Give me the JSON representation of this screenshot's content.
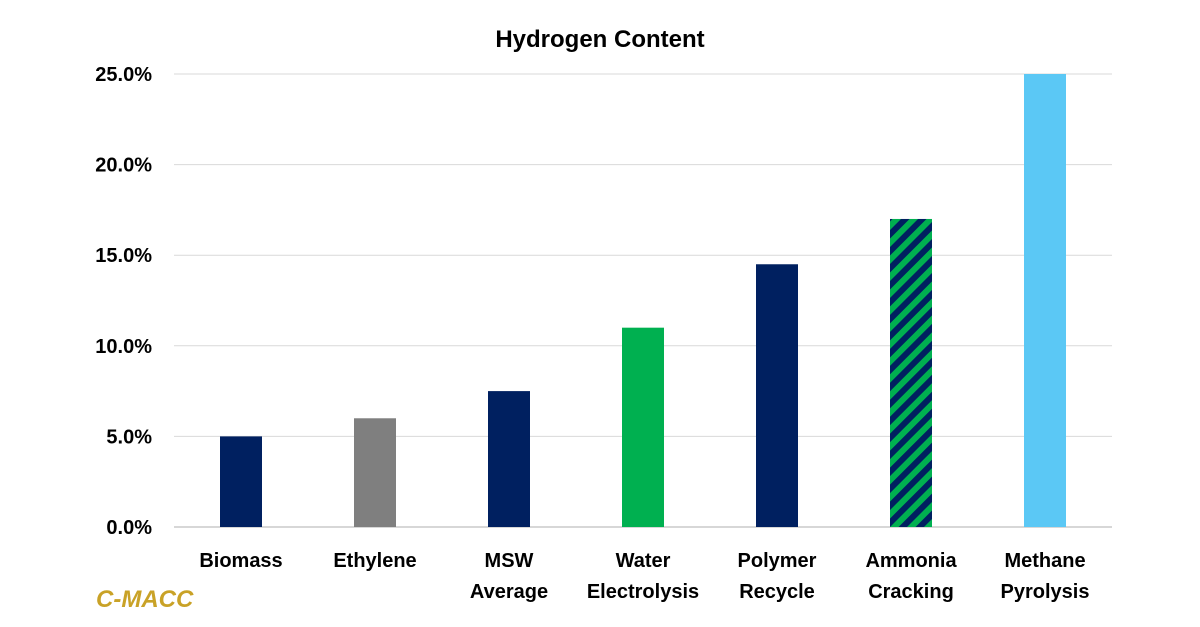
{
  "chart_data": {
    "type": "bar",
    "title": "Hydrogen Content",
    "xlabel": "",
    "ylabel": "",
    "ylim": [
      0,
      25
    ],
    "yticks": [
      "0.0%",
      "5.0%",
      "10.0%",
      "15.0%",
      "20.0%",
      "25.0%"
    ],
    "grid": true,
    "legend": "none",
    "categories": [
      [
        "Biomass"
      ],
      [
        "Ethylene"
      ],
      [
        "MSW",
        "Average"
      ],
      [
        "Water",
        "Electrolysis"
      ],
      [
        "Polymer",
        "Recycle"
      ],
      [
        "Ammonia",
        "Cracking"
      ],
      [
        "Methane",
        "Pyrolysis"
      ]
    ],
    "values": [
      5.0,
      6.0,
      7.5,
      11.0,
      14.5,
      17.0,
      25.0
    ],
    "unit": "%",
    "bar_colors": [
      "#002060",
      "#7f7f7f",
      "#002060",
      "#00b050",
      "#002060",
      "striped",
      "#5bc8f5"
    ],
    "pattern_colors": [
      "#002060",
      "#00b050"
    ]
  },
  "watermark": {
    "text": "C-MACC",
    "color": "#c9a227"
  }
}
